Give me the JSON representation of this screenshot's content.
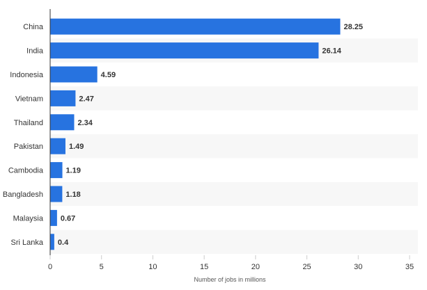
{
  "chart_data": {
    "type": "bar",
    "orientation": "horizontal",
    "title": "",
    "xlabel": "Number of jobs in millions",
    "ylabel": "",
    "categories": [
      "China",
      "India",
      "Indonesia",
      "Vietnam",
      "Thailand",
      "Pakistan",
      "Cambodia",
      "Bangladesh",
      "Malaysia",
      "Sri Lanka"
    ],
    "values": [
      28.25,
      26.14,
      4.59,
      2.47,
      2.34,
      1.49,
      1.19,
      1.18,
      0.67,
      0.4
    ],
    "value_labels": [
      "28.25",
      "26.14",
      "4.59",
      "2.47",
      "2.34",
      "1.49",
      "1.19",
      "1.18",
      "0.67",
      "0.4"
    ],
    "xlim": [
      0,
      35
    ],
    "xticks": [
      0,
      5,
      10,
      15,
      20,
      25,
      30,
      35
    ],
    "xtick_labels": [
      "0",
      "5",
      "10",
      "15",
      "20",
      "25",
      "30",
      "35"
    ],
    "grid": false,
    "alternating_row_bands": true,
    "bar_color": "#2773e0",
    "band_color": "#f7f7f7"
  }
}
